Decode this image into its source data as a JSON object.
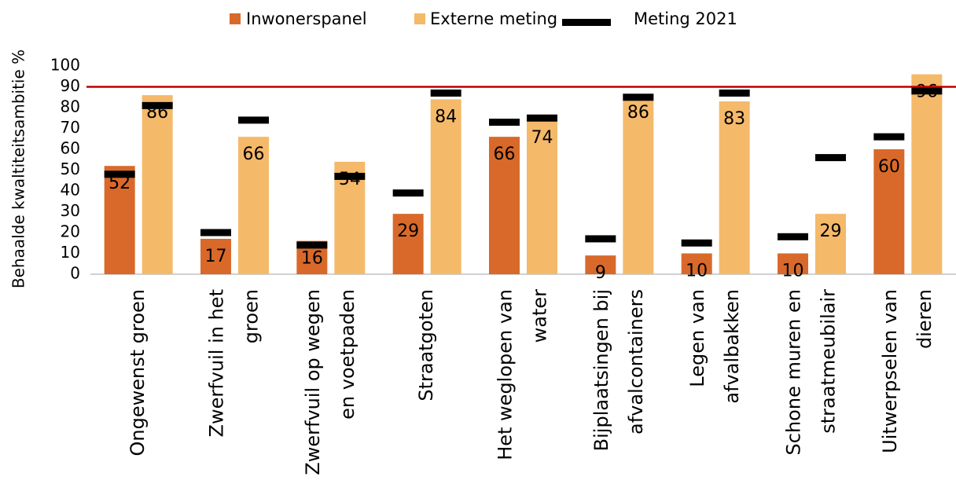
{
  "chart_data": {
    "type": "bar",
    "y_label": "Behaalde kwaltiteitsambitie %",
    "categories": [
      [
        "Ongewenst groen"
      ],
      [
        "Zwerfvuil in het",
        "groen"
      ],
      [
        "Zwerfvuil op wegen",
        "en voetpaden"
      ],
      [
        "Straatgoten"
      ],
      [
        "Het weglopen van",
        "water"
      ],
      [
        "Bijplaatsingen bij",
        "afvalcontainers"
      ],
      [
        "Legen van",
        "afvalbakken"
      ],
      [
        "Schone muren en",
        "straatmeubilair"
      ],
      [
        "Uitwerpselen van",
        "dieren"
      ]
    ],
    "series": [
      {
        "name": "Inwonerspanel",
        "color": "#d9692a",
        "values": [
          52,
          17,
          16,
          29,
          66,
          9,
          10,
          10,
          60
        ]
      },
      {
        "name": "Externe meting",
        "color": "#f5b96a",
        "values": [
          86,
          66,
          54,
          84,
          74,
          86,
          83,
          29,
          96
        ]
      }
    ],
    "reference": {
      "name": "Meting 2021",
      "color": "#000000",
      "values": [
        [
          48,
          81
        ],
        [
          20,
          74
        ],
        [
          14,
          47
        ],
        [
          39,
          87
        ],
        [
          73,
          75
        ],
        [
          17,
          85
        ],
        [
          15,
          87
        ],
        [
          18,
          56
        ],
        [
          66,
          88
        ]
      ]
    },
    "target_line": {
      "value": 90,
      "color": "#c00000"
    },
    "ylim": [
      0,
      100
    ],
    "yticks": [
      0,
      10,
      20,
      30,
      40,
      50,
      60,
      70,
      80,
      90,
      100
    ]
  }
}
